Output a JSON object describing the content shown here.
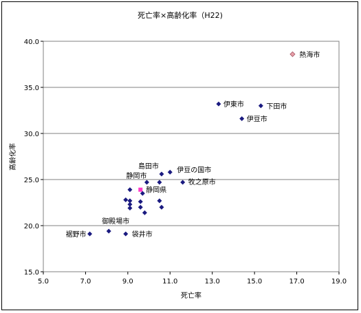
{
  "chart_data": {
    "type": "scatter",
    "title": "死亡率×高齢化率（H22)",
    "xlabel": "死亡率",
    "ylabel": "高齢化率",
    "xlim": [
      5.0,
      19.0
    ],
    "ylim": [
      15.0,
      40.0
    ],
    "xticks": [
      "5.0",
      "7.0",
      "9.0",
      "11.0",
      "13.0",
      "15.0",
      "17.0",
      "19.0"
    ],
    "yticks": [
      "15.0",
      "20.0",
      "25.0",
      "30.0",
      "35.0",
      "40.0"
    ],
    "grid": "horizontal",
    "colors": {
      "city": "#1a1a80",
      "atami": "#e8a0a8",
      "shizuoka_pref": "#ff3cc8"
    },
    "points": [
      {
        "x": 16.8,
        "y": 38.6,
        "label": "熱海市",
        "style": "atami"
      },
      {
        "x": 13.3,
        "y": 33.2,
        "label": "伊東市",
        "style": "city"
      },
      {
        "x": 15.3,
        "y": 33.0,
        "label": "下田市",
        "style": "city"
      },
      {
        "x": 14.4,
        "y": 31.6,
        "label": "伊豆市",
        "style": "city"
      },
      {
        "x": 10.6,
        "y": 25.6,
        "label": "島田市",
        "style": "city"
      },
      {
        "x": 11.0,
        "y": 25.8,
        "label": "伊豆の国市",
        "style": "city"
      },
      {
        "x": 11.6,
        "y": 24.7,
        "label": "牧之原市",
        "style": "city"
      },
      {
        "x": 9.9,
        "y": 24.7,
        "label": "静岡市",
        "style": "city"
      },
      {
        "x": 9.6,
        "y": 23.9,
        "label": "静岡県",
        "style": "shizuoka_pref"
      },
      {
        "x": 8.1,
        "y": 19.4,
        "label": "御殿場市",
        "style": "city"
      },
      {
        "x": 7.2,
        "y": 19.1,
        "label": "裾野市",
        "style": "city"
      },
      {
        "x": 8.9,
        "y": 19.1,
        "label": "袋井市",
        "style": "city"
      },
      {
        "x": 10.5,
        "y": 24.7,
        "label": "",
        "style": "city"
      },
      {
        "x": 9.1,
        "y": 23.9,
        "label": "",
        "style": "city"
      },
      {
        "x": 9.7,
        "y": 23.5,
        "label": "",
        "style": "city"
      },
      {
        "x": 8.9,
        "y": 22.8,
        "label": "",
        "style": "city"
      },
      {
        "x": 9.1,
        "y": 22.7,
        "label": "",
        "style": "city"
      },
      {
        "x": 9.6,
        "y": 22.6,
        "label": "",
        "style": "city"
      },
      {
        "x": 10.5,
        "y": 22.7,
        "label": "",
        "style": "city"
      },
      {
        "x": 9.1,
        "y": 22.3,
        "label": "",
        "style": "city"
      },
      {
        "x": 9.6,
        "y": 22.0,
        "label": "",
        "style": "city"
      },
      {
        "x": 10.6,
        "y": 22.0,
        "label": "",
        "style": "city"
      },
      {
        "x": 9.1,
        "y": 21.9,
        "label": "",
        "style": "city"
      },
      {
        "x": 9.8,
        "y": 21.4,
        "label": "",
        "style": "city"
      }
    ]
  }
}
